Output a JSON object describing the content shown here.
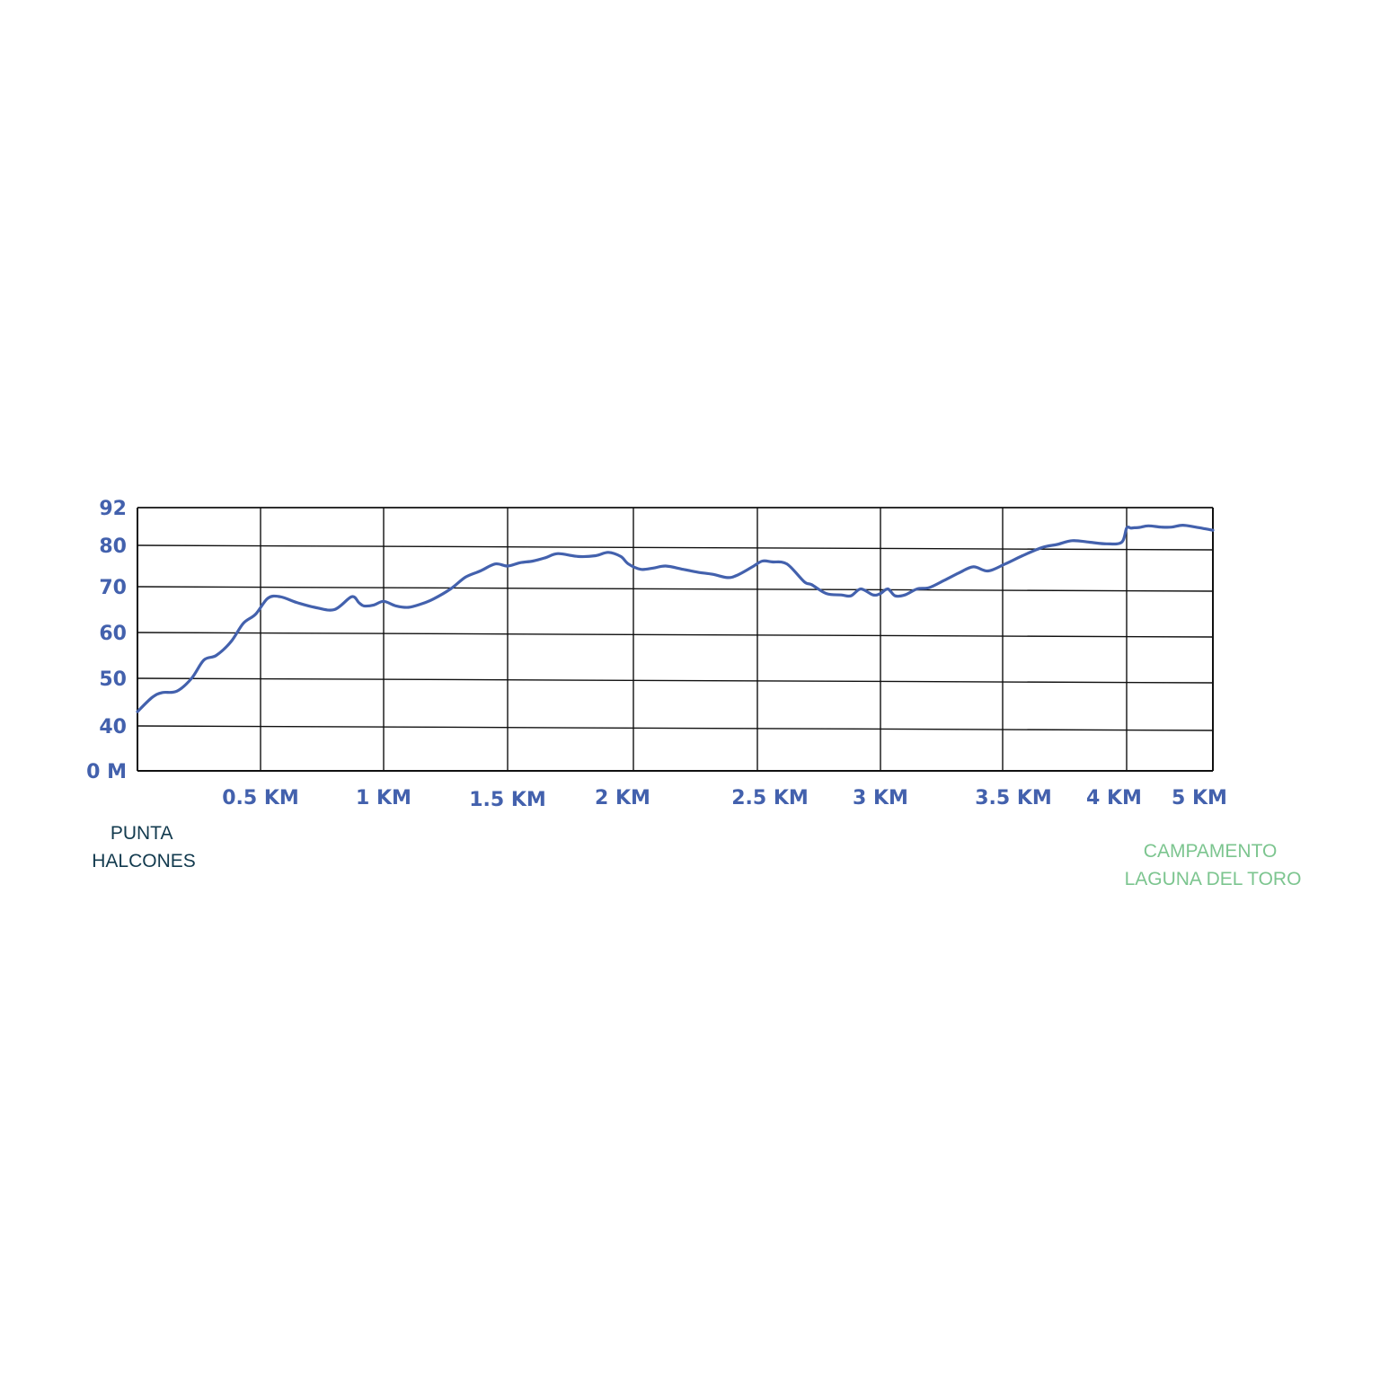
{
  "chart_data": {
    "type": "line",
    "title": "",
    "xlabel": "",
    "ylabel": "",
    "y_ticks": [
      {
        "value": 0,
        "label": "0 M"
      },
      {
        "value": 40,
        "label": "40"
      },
      {
        "value": 50,
        "label": "50"
      },
      {
        "value": 60,
        "label": "60"
      },
      {
        "value": 70,
        "label": "70"
      },
      {
        "value": 80,
        "label": "80"
      },
      {
        "value": 92,
        "label": "92"
      }
    ],
    "x_ticks": [
      {
        "value": 0.5,
        "label": "0.5 KM"
      },
      {
        "value": 1,
        "label": "1 KM"
      },
      {
        "value": 1.5,
        "label": "1.5 KM"
      },
      {
        "value": 2,
        "label": "2 KM"
      },
      {
        "value": 2.5,
        "label": "2.5 KM"
      },
      {
        "value": 3,
        "label": "3 KM"
      },
      {
        "value": 3.5,
        "label": "3.5 KM"
      },
      {
        "value": 4,
        "label": "4 KM"
      },
      {
        "value": 5,
        "label": "5 KM"
      }
    ],
    "grid": true,
    "start_label": [
      "PUNTA",
      "HALCONES"
    ],
    "end_label": [
      "CAMPAMENTO",
      "LAGUNA DEL TORO"
    ],
    "series": [
      {
        "color": "#4361ad",
        "x": [
          0,
          0.06,
          0.1,
          0.16,
          0.22,
          0.27,
          0.32,
          0.38,
          0.43,
          0.48,
          0.53,
          0.58,
          0.65,
          0.72,
          0.8,
          0.87,
          0.9,
          0.92,
          0.96,
          1.0,
          1.05,
          1.1,
          1.15,
          1.2,
          1.27,
          1.33,
          1.39,
          1.45,
          1.5,
          1.55,
          1.6,
          1.65,
          1.7,
          1.78,
          1.85,
          1.9,
          1.95,
          1.98,
          2.03,
          2.08,
          2.13,
          2.2,
          2.26,
          2.32,
          2.38,
          2.42,
          2.48,
          2.52,
          2.56,
          2.62,
          2.69,
          2.72,
          2.78,
          2.84,
          2.88,
          2.92,
          2.97,
          3.0,
          3.03,
          3.06,
          3.1,
          3.15,
          3.2,
          3.26,
          3.32,
          3.38,
          3.44,
          3.51,
          3.58,
          3.66,
          3.72,
          3.78,
          3.85,
          3.92,
          3.98,
          4.0,
          4.05,
          4.09,
          4.15,
          4.25,
          4.4,
          4.52,
          4.65,
          4.8,
          5.0
        ],
        "values": [
          43,
          46,
          47,
          47.3,
          50,
          54,
          55,
          58,
          62,
          64,
          67.5,
          67.8,
          66.5,
          65.5,
          65,
          67.8,
          66.5,
          65.8,
          66,
          66.8,
          65.8,
          65.5,
          66.2,
          67.3,
          69.5,
          72.3,
          73.8,
          75.5,
          75,
          75.8,
          76.2,
          77,
          78,
          77.3,
          77.5,
          78.3,
          77.3,
          75.5,
          74.2,
          74.5,
          75,
          74.2,
          73.5,
          73,
          72.2,
          72.8,
          74.8,
          76.2,
          76,
          75.5,
          71.2,
          70.5,
          68.5,
          68.2,
          68,
          69.5,
          68.2,
          68.5,
          69.5,
          68,
          68.2,
          69.5,
          69.8,
          71.5,
          73.3,
          74.8,
          73.8,
          75.5,
          77.5,
          79.5,
          80.3,
          81.5,
          81,
          80.5,
          81,
          85.5,
          85.5,
          85.6,
          85.7,
          86.2,
          85.8,
          85.8,
          86.4,
          85.8,
          84.8
        ]
      }
    ]
  }
}
